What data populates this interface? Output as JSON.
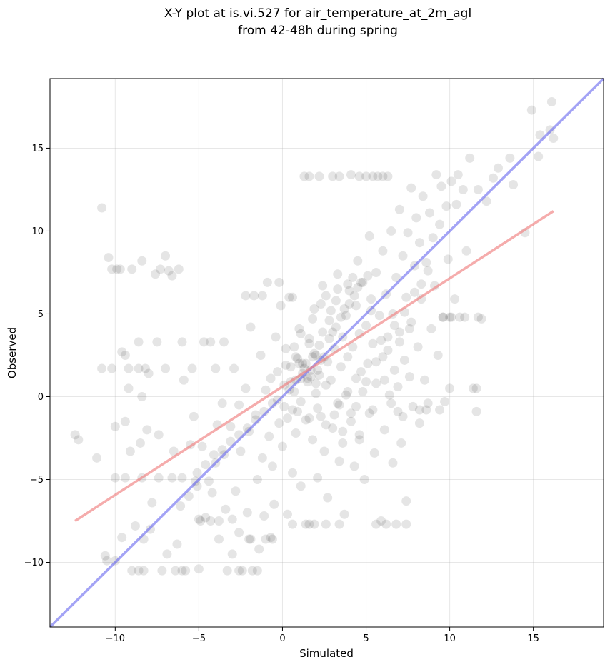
{
  "chart_data": {
    "type": "scatter",
    "title": "X-Y plot at is.vi.527 for air_temperature_at_2m_agl",
    "subtitle": "from 42-48h during spring",
    "xlabel": "Simulated",
    "ylabel": "Observed",
    "xlim": [
      -13.9,
      19.2
    ],
    "ylim": [
      -13.9,
      19.2
    ],
    "xticks": [
      -10,
      -5,
      0,
      5,
      10,
      15
    ],
    "yticks": [
      -10,
      -5,
      0,
      5,
      10,
      15
    ],
    "xtick_labels": [
      "−10",
      "−5",
      "0",
      "5",
      "10",
      "15"
    ],
    "ytick_labels": [
      "−10",
      "−5",
      "0",
      "5",
      "10",
      "15"
    ],
    "grid": true,
    "point_color": "#000000",
    "point_opacity": 0.1,
    "points": [
      [
        -12.4,
        -2.3
      ],
      [
        -12.2,
        -2.6
      ],
      [
        -11.1,
        -3.7
      ],
      [
        -10.8,
        11.4
      ],
      [
        -10.6,
        -9.6
      ],
      [
        -10.5,
        -9.9
      ],
      [
        -10.4,
        8.4
      ],
      [
        -10.2,
        7.7
      ],
      [
        -10.0,
        -1.8
      ],
      [
        -10.0,
        -9.9
      ],
      [
        -9.9,
        7.7
      ],
      [
        -9.6,
        2.7
      ],
      [
        -9.4,
        2.5
      ],
      [
        -9.4,
        -1.5
      ],
      [
        -9.2,
        0.5
      ],
      [
        -9.1,
        -3.3
      ],
      [
        -9.0,
        -10.5
      ],
      [
        -8.8,
        -7.8
      ],
      [
        -8.6,
        3.3
      ],
      [
        -8.5,
        -2.8
      ],
      [
        -8.4,
        8.2
      ],
      [
        -8.4,
        0.0
      ],
      [
        -8.3,
        -8.6
      ],
      [
        -8.3,
        -10.5
      ],
      [
        -8.1,
        -2.0
      ],
      [
        -8.0,
        1.4
      ],
      [
        -7.9,
        -8.0
      ],
      [
        -7.8,
        -6.4
      ],
      [
        -7.6,
        7.4
      ],
      [
        -7.5,
        3.3
      ],
      [
        -7.4,
        -2.3
      ],
      [
        -7.0,
        8.5
      ],
      [
        -6.9,
        -9.5
      ],
      [
        -6.8,
        7.6
      ],
      [
        -6.6,
        7.3
      ],
      [
        -6.5,
        -3.3
      ],
      [
        -6.4,
        -10.5
      ],
      [
        -6.3,
        -8.9
      ],
      [
        -6.1,
        -6.6
      ],
      [
        -5.9,
        1.0
      ],
      [
        -5.8,
        -10.5
      ],
      [
        -5.6,
        -6.0
      ],
      [
        -5.5,
        -2.9
      ],
      [
        -5.3,
        -1.2
      ],
      [
        -5.1,
        -5.4
      ],
      [
        -4.9,
        -7.5
      ],
      [
        -4.8,
        -3.0
      ],
      [
        -4.6,
        -7.3
      ],
      [
        -4.3,
        3.3
      ],
      [
        -4.2,
        -5.8
      ],
      [
        -4.0,
        -4.0
      ],
      [
        -3.9,
        -1.7
      ],
      [
        -3.8,
        -8.6
      ],
      [
        -3.6,
        -0.4
      ],
      [
        -3.5,
        -3.5
      ],
      [
        -3.4,
        -6.8
      ],
      [
        -3.3,
        -10.5
      ],
      [
        -3.1,
        -1.8
      ],
      [
        -3.0,
        -9.5
      ],
      [
        -2.9,
        1.7
      ],
      [
        -2.8,
        -5.7
      ],
      [
        -2.6,
        -8.2
      ],
      [
        -2.6,
        -0.5
      ],
      [
        -2.5,
        -3.3
      ],
      [
        -2.4,
        -10.5
      ],
      [
        -2.2,
        0.5
      ],
      [
        -2.1,
        -7.0
      ],
      [
        -2.0,
        -2.1
      ],
      [
        -1.9,
        -8.6
      ],
      [
        -1.9,
        4.2
      ],
      [
        -1.8,
        -10.5
      ],
      [
        -1.7,
        6.1
      ],
      [
        -1.6,
        -1.1
      ],
      [
        -1.5,
        -5.0
      ],
      [
        -1.4,
        -9.2
      ],
      [
        -1.3,
        2.5
      ],
      [
        -1.2,
        -3.7
      ],
      [
        -1.1,
        -7.2
      ],
      [
        -1.0,
        0.4
      ],
      [
        -0.9,
        6.9
      ],
      [
        -0.8,
        -2.4
      ],
      [
        -0.7,
        -8.5
      ],
      [
        -0.7,
        1.1
      ],
      [
        -0.6,
        -4.2
      ],
      [
        -0.5,
        -6.5
      ],
      [
        -0.4,
        3.6
      ],
      [
        -0.3,
        -0.2
      ],
      [
        -0.2,
        -1.6
      ],
      [
        -0.1,
        5.5
      ],
      [
        0.0,
        -3.0
      ],
      [
        0.1,
        0.7
      ],
      [
        0.2,
        2.9
      ],
      [
        0.3,
        -7.1
      ],
      [
        0.3,
        -1.3
      ],
      [
        0.4,
        6.0
      ],
      [
        0.5,
        1.8
      ],
      [
        0.6,
        -4.6
      ],
      [
        0.7,
        0.3
      ],
      [
        0.8,
        2.4
      ],
      [
        0.8,
        -2.2
      ],
      [
        0.9,
        -0.9
      ],
      [
        1.0,
        4.1
      ],
      [
        1.1,
        1.1
      ],
      [
        1.1,
        -5.4
      ],
      [
        1.2,
        2.0
      ],
      [
        1.3,
        13.3
      ],
      [
        1.4,
        -1.4
      ],
      [
        1.5,
        0.9
      ],
      [
        1.6,
        3.2
      ],
      [
        1.6,
        -7.7
      ],
      [
        1.7,
        1.6
      ],
      [
        1.8,
        -2.6
      ],
      [
        1.9,
        5.3
      ],
      [
        2.0,
        0.2
      ],
      [
        2.0,
        2.5
      ],
      [
        2.1,
        -4.9
      ],
      [
        2.2,
        1.3
      ],
      [
        2.3,
        -1.2
      ],
      [
        2.4,
        3.9
      ],
      [
        2.4,
        6.7
      ],
      [
        2.5,
        -3.3
      ],
      [
        2.6,
        0.7
      ],
      [
        2.7,
        2.1
      ],
      [
        2.7,
        -6.1
      ],
      [
        2.8,
        4.6
      ],
      [
        2.9,
        1.0
      ],
      [
        3.0,
        -1.9
      ],
      [
        3.0,
        13.3
      ],
      [
        3.1,
        2.9
      ],
      [
        3.2,
        5.8
      ],
      [
        3.3,
        -0.4
      ],
      [
        3.3,
        7.4
      ],
      [
        3.4,
        -3.9
      ],
      [
        3.5,
        1.8
      ],
      [
        3.6,
        3.6
      ],
      [
        3.6,
        -2.8
      ],
      [
        3.7,
        -7.1
      ],
      [
        3.8,
        4.9
      ],
      [
        3.9,
        0.3
      ],
      [
        3.9,
        2.4
      ],
      [
        4.0,
        6.4
      ],
      [
        4.1,
        13.4
      ],
      [
        4.1,
        -1.5
      ],
      [
        4.2,
        3.0
      ],
      [
        4.3,
        -4.2
      ],
      [
        4.4,
        5.5
      ],
      [
        4.4,
        1.1
      ],
      [
        4.5,
        8.2
      ],
      [
        4.6,
        -2.3
      ],
      [
        4.6,
        3.8
      ],
      [
        4.7,
        6.9
      ],
      [
        4.8,
        0.3
      ],
      [
        4.9,
        -5.0
      ],
      [
        5.0,
        13.3
      ],
      [
        5.0,
        4.3
      ],
      [
        5.1,
        2.0
      ],
      [
        5.2,
        9.7
      ],
      [
        5.2,
        -1.0
      ],
      [
        5.3,
        5.9
      ],
      [
        5.4,
        3.2
      ],
      [
        5.5,
        -3.4
      ],
      [
        5.6,
        7.5
      ],
      [
        5.6,
        0.8
      ],
      [
        5.7,
        13.3
      ],
      [
        5.8,
        4.9
      ],
      [
        5.9,
        -7.5
      ],
      [
        6.0,
        2.4
      ],
      [
        6.0,
        8.8
      ],
      [
        6.1,
        -2.0
      ],
      [
        6.2,
        6.2
      ],
      [
        6.3,
        3.6
      ],
      [
        6.3,
        13.3
      ],
      [
        6.4,
        0.1
      ],
      [
        6.5,
        10.0
      ],
      [
        6.6,
        -4.0
      ],
      [
        6.6,
        5.0
      ],
      [
        6.7,
        1.6
      ],
      [
        6.8,
        7.2
      ],
      [
        6.9,
        -0.9
      ],
      [
        7.0,
        3.9
      ],
      [
        7.0,
        11.3
      ],
      [
        7.1,
        -2.8
      ],
      [
        7.2,
        8.5
      ],
      [
        7.3,
        2.2
      ],
      [
        7.4,
        6.0
      ],
      [
        7.4,
        -6.3
      ],
      [
        7.5,
        9.9
      ],
      [
        7.6,
        1.2
      ],
      [
        7.7,
        12.6
      ],
      [
        7.7,
        4.5
      ],
      [
        7.8,
        -0.6
      ],
      [
        7.9,
        7.9
      ],
      [
        8.0,
        10.8
      ],
      [
        8.1,
        3.0
      ],
      [
        8.2,
        -1.6
      ],
      [
        8.2,
        9.3
      ],
      [
        8.3,
        5.9
      ],
      [
        8.4,
        12.1
      ],
      [
        8.5,
        1.0
      ],
      [
        8.6,
        8.1
      ],
      [
        8.7,
        -0.4
      ],
      [
        8.8,
        11.1
      ],
      [
        8.9,
        4.1
      ],
      [
        9.0,
        9.6
      ],
      [
        9.1,
        6.7
      ],
      [
        9.2,
        13.4
      ],
      [
        9.3,
        2.5
      ],
      [
        9.4,
        10.4
      ],
      [
        9.5,
        12.7
      ],
      [
        9.6,
        4.8
      ],
      [
        9.7,
        -0.3
      ],
      [
        9.8,
        11.5
      ],
      [
        9.9,
        8.3
      ],
      [
        10.0,
        4.8
      ],
      [
        10.1,
        13.0
      ],
      [
        10.3,
        5.9
      ],
      [
        10.4,
        11.6
      ],
      [
        10.5,
        13.4
      ],
      [
        10.6,
        4.8
      ],
      [
        10.8,
        12.5
      ],
      [
        11.0,
        8.8
      ],
      [
        11.2,
        14.4
      ],
      [
        11.4,
        0.5
      ],
      [
        11.6,
        -0.9
      ],
      [
        11.7,
        12.5
      ],
      [
        11.9,
        4.7
      ],
      [
        12.2,
        11.8
      ],
      [
        12.6,
        13.2
      ],
      [
        12.9,
        13.8
      ],
      [
        13.6,
        14.4
      ],
      [
        13.8,
        12.8
      ],
      [
        14.5,
        9.9
      ],
      [
        14.9,
        17.3
      ],
      [
        15.3,
        14.5
      ],
      [
        15.4,
        15.8
      ],
      [
        16.1,
        17.8
      ],
      [
        16.2,
        15.6
      ],
      [
        16.0,
        16.1
      ],
      [
        -9.7,
        7.7
      ],
      [
        -9.0,
        7.7
      ],
      [
        -8.6,
        1.7
      ],
      [
        -7.3,
        7.7
      ],
      [
        -6.2,
        7.7
      ],
      [
        -6.0,
        3.3
      ],
      [
        -4.7,
        3.3
      ],
      [
        -3.5,
        3.3
      ],
      [
        -2.2,
        6.1
      ],
      [
        -1.2,
        6.1
      ],
      [
        -0.2,
        6.9
      ],
      [
        0.6,
        6.0
      ],
      [
        1.6,
        13.3
      ],
      [
        2.2,
        13.3
      ],
      [
        3.4,
        13.3
      ],
      [
        4.6,
        13.3
      ],
      [
        5.4,
        13.3
      ],
      [
        6.0,
        13.3
      ],
      [
        -10.8,
        1.7
      ],
      [
        -10.2,
        1.7
      ],
      [
        -9.2,
        1.7
      ],
      [
        -8.2,
        1.7
      ],
      [
        -7.0,
        1.7
      ],
      [
        -5.4,
        1.7
      ],
      [
        -4.0,
        1.7
      ],
      [
        -10.0,
        -4.9
      ],
      [
        -9.4,
        -4.9
      ],
      [
        -8.4,
        -4.9
      ],
      [
        -7.4,
        -4.9
      ],
      [
        -6.6,
        -4.9
      ],
      [
        -6.0,
        -4.9
      ],
      [
        -5.2,
        -5.1
      ],
      [
        -4.4,
        -5.1
      ],
      [
        -9.6,
        -8.5
      ],
      [
        -8.6,
        -10.5
      ],
      [
        -7.2,
        -10.5
      ],
      [
        -6.0,
        -10.5
      ],
      [
        -5.0,
        -10.4
      ],
      [
        -2.6,
        -10.5
      ],
      [
        -1.5,
        -10.5
      ],
      [
        -5.0,
        -7.4
      ],
      [
        -4.3,
        -7.5
      ],
      [
        -3.8,
        -7.5
      ],
      [
        -3.0,
        -7.4
      ],
      [
        -2.0,
        -8.6
      ],
      [
        -1.0,
        -8.6
      ],
      [
        -0.6,
        -8.6
      ],
      [
        0.6,
        -7.7
      ],
      [
        1.4,
        -7.7
      ],
      [
        1.9,
        -7.7
      ],
      [
        2.6,
        -7.7
      ],
      [
        3.4,
        -7.7
      ],
      [
        5.6,
        -7.7
      ],
      [
        6.2,
        -7.7
      ],
      [
        6.8,
        -7.7
      ],
      [
        7.4,
        -7.7
      ],
      [
        8.2,
        -0.8
      ],
      [
        8.6,
        -0.8
      ],
      [
        9.4,
        -0.8
      ],
      [
        10.0,
        0.5
      ],
      [
        11.6,
        0.5
      ],
      [
        9.6,
        4.8
      ],
      [
        10.1,
        4.8
      ],
      [
        10.9,
        4.8
      ],
      [
        11.7,
        4.8
      ],
      [
        -0.3,
        1.5
      ],
      [
        0.2,
        1.9
      ],
      [
        0.5,
        0.9
      ],
      [
        0.9,
        2.3
      ],
      [
        1.2,
        1.4
      ],
      [
        1.4,
        2.0
      ],
      [
        1.7,
        1.2
      ],
      [
        1.9,
        2.6
      ],
      [
        2.1,
        1.6
      ],
      [
        2.3,
        2.2
      ],
      [
        0.4,
        0.4
      ],
      [
        0.8,
        1.0
      ],
      [
        1.0,
        2.0
      ],
      [
        1.3,
        1.7
      ],
      [
        1.5,
        1.1
      ],
      [
        1.8,
        2.4
      ],
      [
        2.0,
        0.8
      ],
      [
        2.2,
        3.1
      ],
      [
        2.5,
        2.4
      ],
      [
        2.8,
        3.5
      ],
      [
        3.0,
        3.9
      ],
      [
        3.2,
        4.2
      ],
      [
        3.5,
        4.8
      ],
      [
        3.7,
        5.3
      ],
      [
        4.0,
        5.6
      ],
      [
        4.3,
        6.1
      ],
      [
        4.5,
        6.6
      ],
      [
        4.8,
        6.9
      ],
      [
        5.1,
        7.3
      ],
      [
        5.3,
        5.2
      ],
      [
        -0.6,
        -0.4
      ],
      [
        -1.1,
        -0.9
      ],
      [
        -1.6,
        -1.4
      ],
      [
        -2.1,
        -1.9
      ],
      [
        -2.6,
        -2.3
      ],
      [
        -3.1,
        -2.7
      ],
      [
        -3.6,
        -3.2
      ],
      [
        -4.1,
        -3.5
      ],
      [
        -4.6,
        -4.1
      ],
      [
        -5.1,
        -4.6
      ],
      [
        0.1,
        -0.6
      ],
      [
        0.6,
        -0.8
      ],
      [
        1.1,
        -0.3
      ],
      [
        1.6,
        -1.3
      ],
      [
        2.1,
        -0.7
      ],
      [
        2.6,
        -1.7
      ],
      [
        3.1,
        -1.1
      ],
      [
        3.6,
        -2.1
      ],
      [
        4.1,
        -1.0
      ],
      [
        4.6,
        -2.6
      ],
      [
        5.6,
        2.1
      ],
      [
        5.9,
        3.4
      ],
      [
        6.3,
        2.8
      ],
      [
        6.7,
        4.3
      ],
      [
        7.0,
        3.3
      ],
      [
        7.3,
        5.1
      ],
      [
        7.6,
        4.1
      ],
      [
        7.9,
        6.3
      ],
      [
        8.3,
        6.8
      ],
      [
        8.7,
        7.6
      ],
      [
        3.9,
        6.8
      ],
      [
        4.2,
        7.2
      ],
      [
        2.6,
        6.1
      ],
      [
        2.9,
        5.2
      ],
      [
        3.3,
        6.5
      ],
      [
        1.8,
        4.7
      ],
      [
        2.3,
        5.6
      ],
      [
        1.1,
        3.8
      ],
      [
        1.6,
        3.5
      ],
      [
        0.7,
        3.0
      ],
      [
        6.1,
        1.0
      ],
      [
        6.5,
        -0.4
      ],
      [
        6.9,
        0.6
      ],
      [
        7.2,
        -1.2
      ],
      [
        5.4,
        -0.8
      ],
      [
        5.0,
        0.9
      ],
      [
        4.7,
        1.5
      ],
      [
        4.4,
        -0.6
      ],
      [
        3.8,
        0.1
      ],
      [
        3.4,
        -0.5
      ]
    ],
    "regression_line": {
      "color": "#f08080",
      "opacity": 0.65,
      "x": [
        -12.4,
        16.2
      ],
      "y": [
        -7.5,
        11.2
      ]
    },
    "identity_line": {
      "color": "#6666ee",
      "opacity": 0.6,
      "x": [
        -13.9,
        19.2
      ],
      "y": [
        -13.9,
        19.2
      ]
    }
  }
}
